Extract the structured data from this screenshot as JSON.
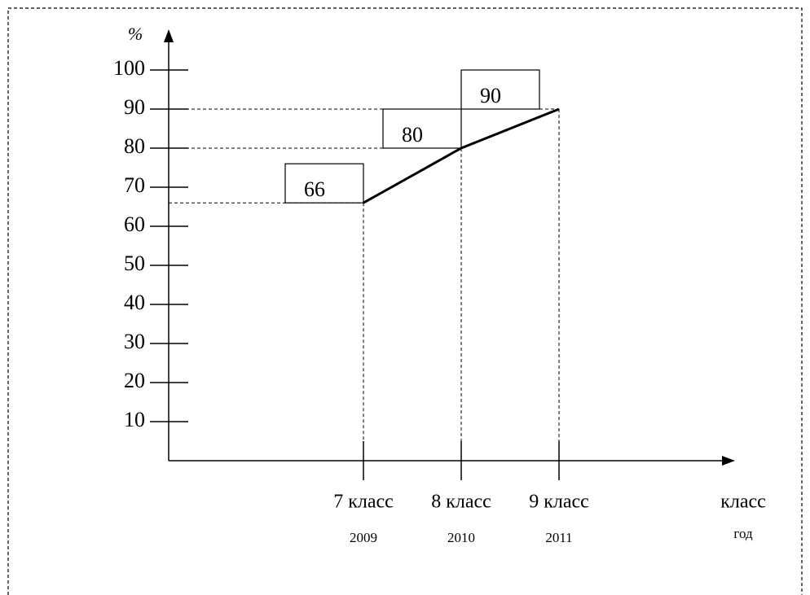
{
  "chart_data": {
    "type": "line",
    "ylabel": "%",
    "xlabel": "класс",
    "xlabel_sub": "год",
    "categories": [
      "7 класс",
      "8 класс",
      "9 класс"
    ],
    "years": [
      "2009",
      "2010",
      "2011"
    ],
    "values": [
      66,
      80,
      90
    ],
    "color": "#000000",
    "ylim": [
      0,
      100
    ],
    "yticks": [
      10,
      20,
      30,
      40,
      50,
      60,
      70,
      80,
      90,
      100
    ]
  }
}
